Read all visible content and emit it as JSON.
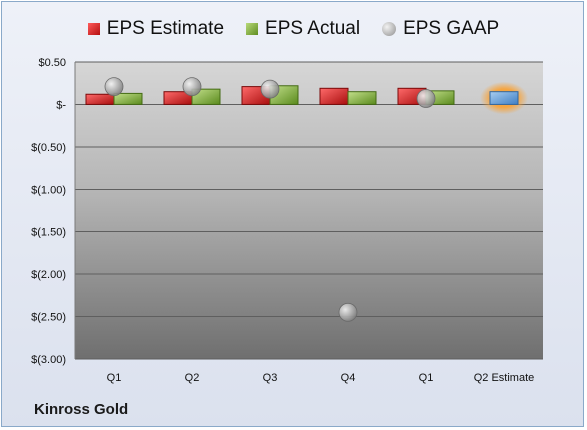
{
  "chart_data": {
    "type": "bar",
    "categories": [
      "Q1",
      "Q2",
      "Q3",
      "Q4",
      "Q1",
      "Q2 Estimate"
    ],
    "ylim": [
      -3.0,
      0.5
    ],
    "yticks": [
      0.5,
      0.0,
      -0.5,
      -1.0,
      -1.5,
      -2.0,
      -2.5,
      -3.0
    ],
    "ytick_labels": [
      "$0.50",
      "$-",
      "$(0.50)",
      "$(1.00)",
      "$(1.50)",
      "$(2.00)",
      "$(2.50)",
      "$(3.00)"
    ],
    "series": [
      {
        "name": "EPS Estimate",
        "type": "bar",
        "color": "#d42020",
        "values": [
          0.12,
          0.15,
          0.21,
          0.19,
          0.19,
          null
        ]
      },
      {
        "name": "EPS Actual",
        "type": "bar",
        "color": "#7fae3a",
        "values": [
          0.13,
          0.18,
          0.22,
          0.15,
          0.16,
          null
        ]
      },
      {
        "name": "EPS GAAP",
        "type": "scatter",
        "color": "#a0a0a0",
        "values": [
          0.21,
          0.21,
          0.18,
          -2.45,
          0.07,
          null
        ]
      },
      {
        "name": "Q2 Estimate",
        "type": "bar",
        "color": "#5b9bd5",
        "values": [
          null,
          null,
          null,
          null,
          null,
          0.15
        ]
      }
    ],
    "grid": true,
    "legend_position": "top"
  },
  "footer": {
    "company": "Kinross Gold"
  }
}
